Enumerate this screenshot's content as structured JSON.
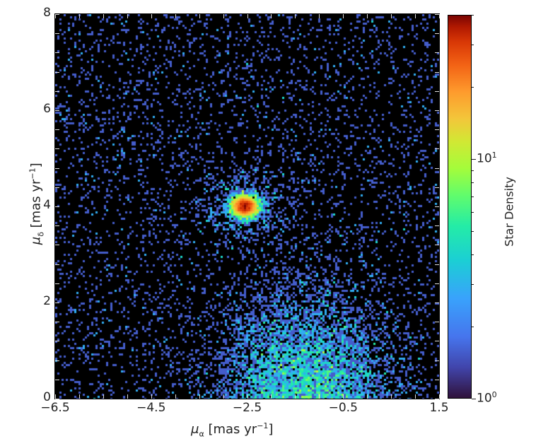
{
  "chart_data": {
    "type": "heatmap",
    "title": "",
    "xlabel": "μ_α [mas yr⁻¹]",
    "ylabel": "μ_δ [mas yr⁻¹]",
    "xlim": [
      -6.5,
      1.5
    ],
    "ylim": [
      0,
      8
    ],
    "x_ticks": [
      -6.5,
      -4.5,
      -2.5,
      -0.5,
      1.5
    ],
    "x_tick_labels": [
      "−6.5",
      "−4.5",
      "−2.5",
      "−0.5",
      "1.5"
    ],
    "y_ticks": [
      0,
      2,
      4,
      6,
      8
    ],
    "y_tick_labels": [
      "0",
      "2",
      "4",
      "6",
      "8"
    ],
    "background": "#000000",
    "colormap": "turbo",
    "colorbar": {
      "label": "Star Density",
      "scale": "log",
      "range": [
        1,
        40
      ],
      "tick_labels": [
        {
          "base": "10",
          "exp": "0",
          "value": 1
        },
        {
          "base": "10",
          "exp": "1",
          "value": 10
        }
      ]
    },
    "features": [
      {
        "name": "compact cluster",
        "center": [
          -2.55,
          4.0
        ],
        "sigma": [
          0.15,
          0.12
        ],
        "peak_density": 35
      },
      {
        "name": "field star overdensity",
        "center": [
          -1.3,
          0.6
        ],
        "sigma": [
          0.9,
          0.9
        ],
        "peak_density": 3
      },
      {
        "name": "uniform background",
        "density": 0.15
      }
    ],
    "grid": false,
    "legend": null
  },
  "axes": {
    "xlabel_main": "μ",
    "xlabel_sub": "α",
    "xlabel_rest": " [mas yr",
    "ylabel_main": "μ",
    "ylabel_sub": "δ",
    "ylabel_rest": " [mas yr",
    "unit_exp": "−1",
    "unit_close": "]"
  }
}
